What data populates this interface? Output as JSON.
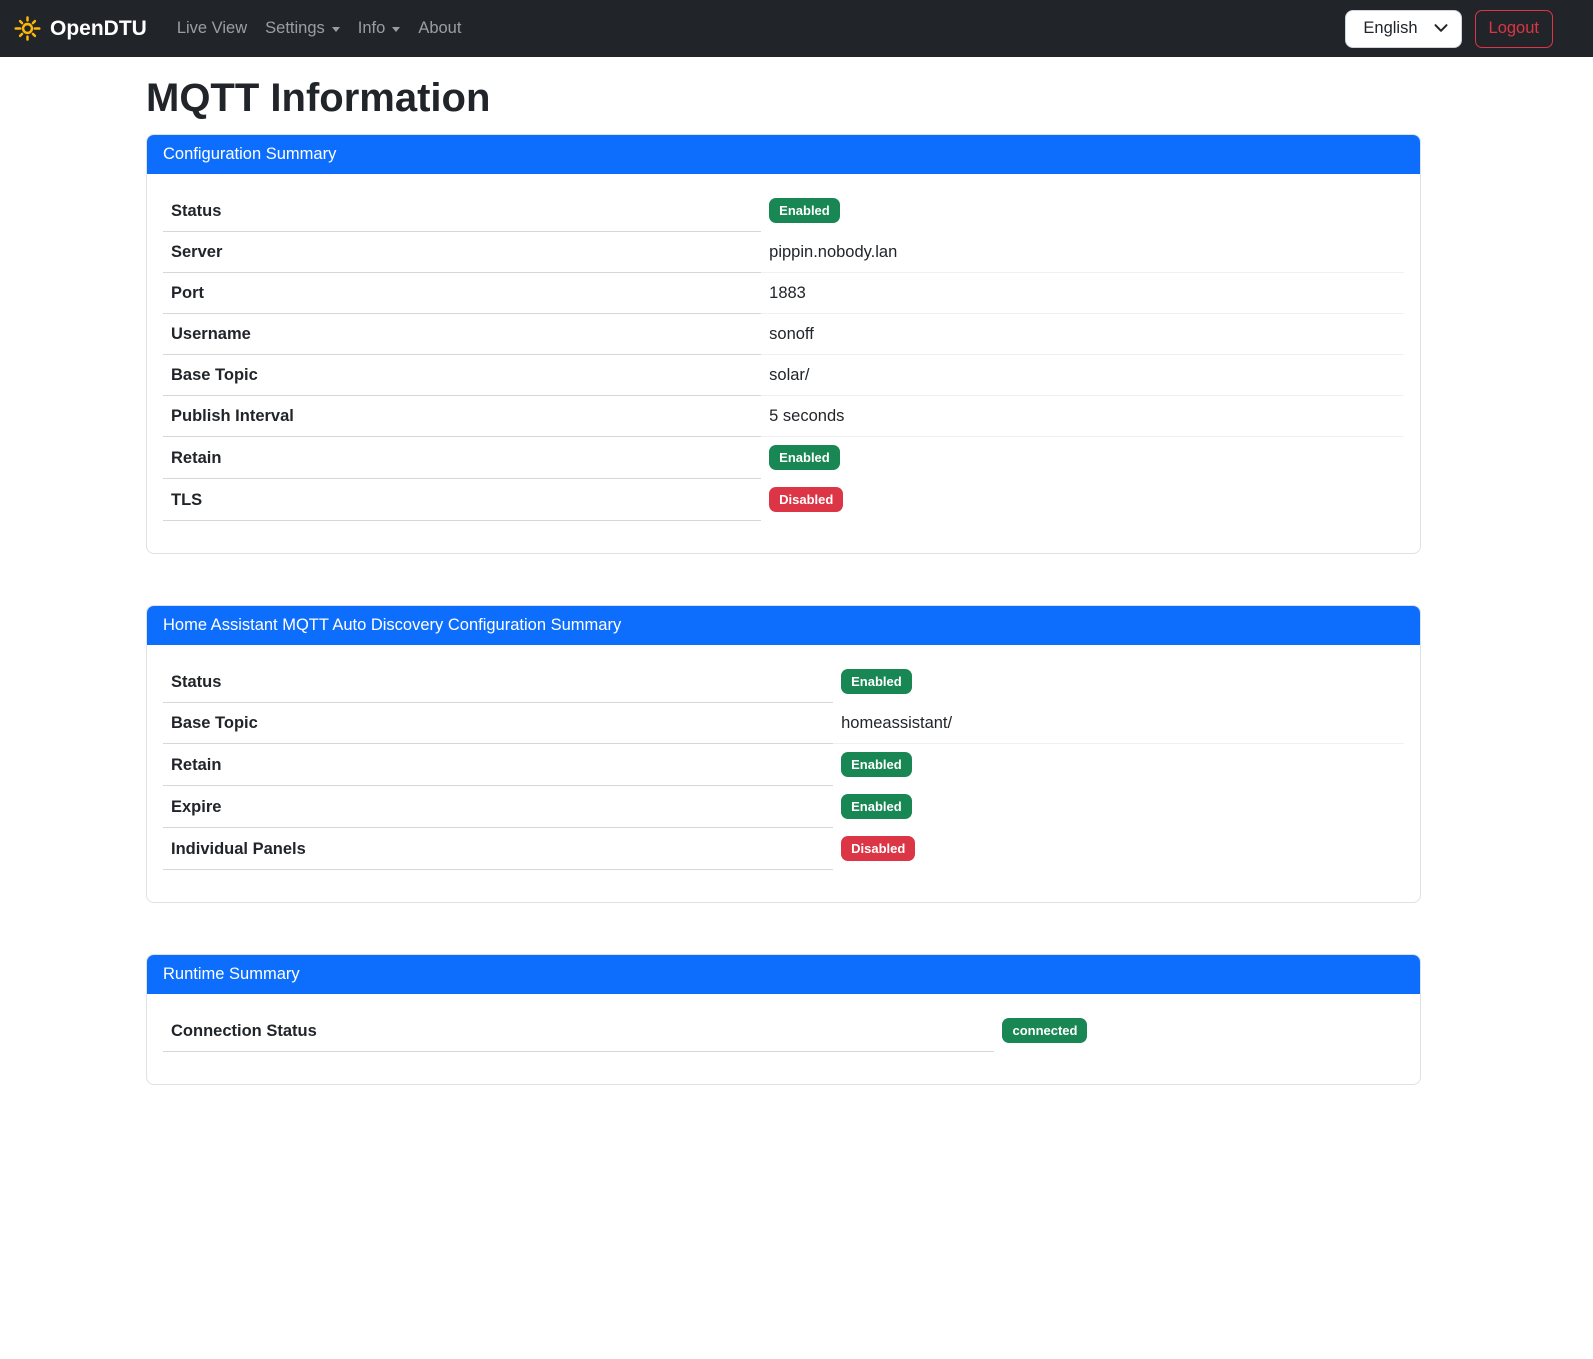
{
  "navbar": {
    "brand": "OpenDTU",
    "items": [
      {
        "label": "Live View",
        "has_dropdown": false
      },
      {
        "label": "Settings",
        "has_dropdown": true
      },
      {
        "label": "Info",
        "has_dropdown": true
      },
      {
        "label": "About",
        "has_dropdown": false
      }
    ],
    "language_selected": "English",
    "logout_label": "Logout"
  },
  "page": {
    "title": "MQTT Information"
  },
  "colors": {
    "primary": "#0d6efd",
    "success": "#198754",
    "danger": "#dc3545",
    "navbar_bg": "#212529",
    "brand_sun": "#fcb50a"
  },
  "cards": [
    {
      "title": "Configuration Summary",
      "label_col": "48.2%",
      "rows": [
        {
          "label": "Status",
          "type": "badge",
          "value": "Enabled",
          "variant": "success"
        },
        {
          "label": "Server",
          "type": "text",
          "value": "pippin.nobody.lan"
        },
        {
          "label": "Port",
          "type": "text",
          "value": "1883"
        },
        {
          "label": "Username",
          "type": "text",
          "value": "sonoff"
        },
        {
          "label": "Base Topic",
          "type": "text",
          "value": "solar/"
        },
        {
          "label": "Publish Interval",
          "type": "text",
          "value": "5 seconds"
        },
        {
          "label": "Retain",
          "type": "badge",
          "value": "Enabled",
          "variant": "success"
        },
        {
          "label": "TLS",
          "type": "badge",
          "value": "Disabled",
          "variant": "danger"
        }
      ]
    },
    {
      "title": "Home Assistant MQTT Auto Discovery Configuration Summary",
      "label_col": "54%",
      "rows": [
        {
          "label": "Status",
          "type": "badge",
          "value": "Enabled",
          "variant": "success"
        },
        {
          "label": "Base Topic",
          "type": "text",
          "value": "homeassistant/"
        },
        {
          "label": "Retain",
          "type": "badge",
          "value": "Enabled",
          "variant": "success"
        },
        {
          "label": "Expire",
          "type": "badge",
          "value": "Enabled",
          "variant": "success"
        },
        {
          "label": "Individual Panels",
          "type": "badge",
          "value": "Disabled",
          "variant": "danger"
        }
      ]
    },
    {
      "title": "Runtime Summary",
      "label_col": "67%",
      "rows": [
        {
          "label": "Connection Status",
          "type": "badge",
          "value": "connected",
          "variant": "success"
        }
      ]
    }
  ]
}
